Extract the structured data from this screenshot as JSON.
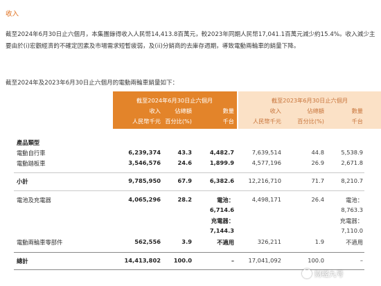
{
  "section_title": "收入",
  "paragraph": "截至2024年6月30日止六個月，本集團錄得收入人民幣14,413.8百萬元，較2023年同期人民幣17,041.1百萬元減少約15.4%。收入減少主要由於(i)宏觀經濟的不確定因素及市場需求短暫疲弱，及(ii)分銷商的去庫存週期，導致電動兩輪車的銷量下降。",
  "intro": "截至2024年及2023年6月30日止六個月的電動兩輪車銷量如下：",
  "table": {
    "period_current": "截至2024年6月30日止六個月",
    "period_prior": "截至2023年6月30日止六個月",
    "col_revenue": "收入",
    "col_revenue_unit": "人民幣千元",
    "col_share": "佔總額",
    "col_share_unit": "百分比(%)",
    "col_volume": "數量",
    "col_volume_unit": "千台",
    "category_header": "產品類型",
    "rows": {
      "bike": {
        "label": "電動自行車",
        "rev_cur": "6,239,374",
        "pct_cur": "43.3",
        "vol_cur": "4,482.7",
        "rev_prev": "7,639,514",
        "pct_prev": "44.8",
        "vol_prev": "5,538.9"
      },
      "scooter": {
        "label": "電動踏板車",
        "rev_cur": "3,546,576",
        "pct_cur": "24.6",
        "vol_cur": "1,899.9",
        "rev_prev": "4,577,196",
        "pct_prev": "26.9",
        "vol_prev": "2,671.8"
      },
      "subtotal": {
        "label": "小計",
        "rev_cur": "9,785,950",
        "pct_cur": "67.9",
        "vol_cur": "6,382.6",
        "rev_prev": "12,216,710",
        "pct_prev": "71.7",
        "vol_prev": "8,210.7"
      },
      "battery": {
        "label": "電池及充電器",
        "rev_cur": "4,065,296",
        "pct_cur": "28.2",
        "battery_label": "電池：",
        "battery_cur": "6,714.6",
        "charger_label": "充電器：",
        "charger_cur": "7,144.3",
        "rev_prev": "4,498,171",
        "pct_prev": "26.4",
        "battery_prev": "8,763.3",
        "charger_prev": "7,110.0"
      },
      "parts": {
        "label": "電動兩輪車零部件",
        "rev_cur": "562,556",
        "pct_cur": "3.9",
        "vol_cur": "不適用",
        "rev_prev": "326,211",
        "pct_prev": "1.9",
        "vol_prev": "不適用"
      },
      "total": {
        "label": "總計",
        "rev_cur": "14,413,802",
        "pct_cur": "100.0",
        "vol_cur": "–",
        "rev_prev": "17,041,092",
        "pct_prev": "100.0",
        "vol_prev": "–"
      }
    }
  },
  "watermark": "财经九号"
}
